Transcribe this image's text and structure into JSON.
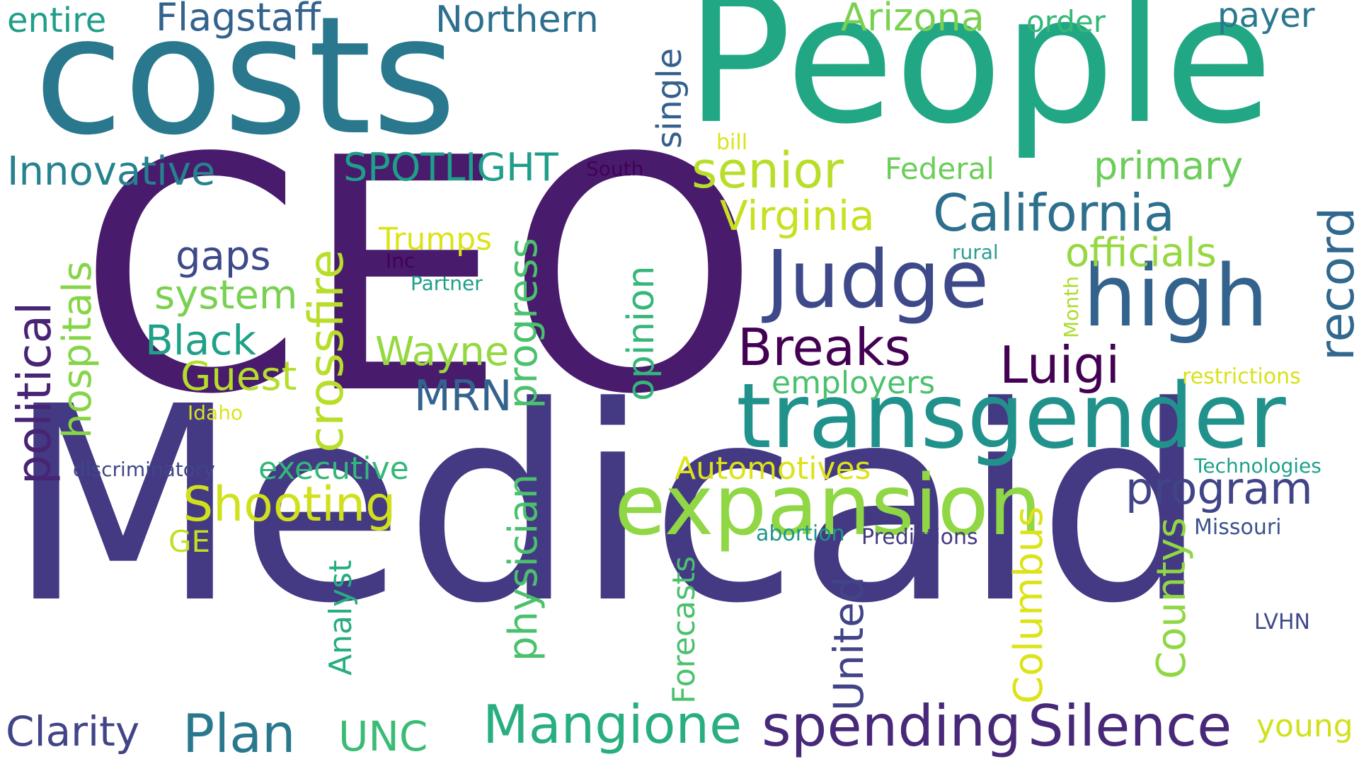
{
  "words": [
    {
      "id": "Medicaid",
      "text": "Medicaid",
      "color": "#443983"
    },
    {
      "id": "CEO",
      "text": "CEO",
      "color": "#481B6D"
    },
    {
      "id": "People",
      "text": "People",
      "color": "#22A785"
    },
    {
      "id": "costs",
      "text": "costs",
      "color": "#2A788E"
    },
    {
      "id": "transgender",
      "text": "transgender",
      "color": "#21918C"
    },
    {
      "id": "expansion",
      "text": "expansion",
      "color": "#8FD744"
    },
    {
      "id": "Judge",
      "text": "Judge",
      "color": "#3E4989"
    },
    {
      "id": "high",
      "text": "high",
      "color": "#33638D"
    },
    {
      "id": "Silence",
      "text": "Silence",
      "color": "#482878"
    },
    {
      "id": "spending",
      "text": "spending",
      "color": "#482878"
    },
    {
      "id": "Mangione",
      "text": "Mangione",
      "color": "#29AF7F"
    },
    {
      "id": "California",
      "text": "California",
      "color": "#2D708E"
    },
    {
      "id": "Breaks",
      "text": "Breaks",
      "color": "#440154"
    },
    {
      "id": "Luigi",
      "text": "Luigi",
      "color": "#440154"
    },
    {
      "id": "Shooting",
      "text": "Shooting",
      "color": "#D0E11C"
    },
    {
      "id": "Plan",
      "text": "Plan",
      "color": "#2A788E"
    },
    {
      "id": "senior",
      "text": "senior",
      "color": "#B8DE29"
    },
    {
      "id": "record",
      "text": "record",
      "color": "#31688E"
    },
    {
      "id": "crossfire",
      "text": "crossfire",
      "color": "#B8DE29"
    },
    {
      "id": "political",
      "text": "political",
      "color": "#482475"
    },
    {
      "id": "physician",
      "text": "physician",
      "color": "#4AC16D"
    },
    {
      "id": "progress",
      "text": "progress",
      "color": "#4AC16D"
    },
    {
      "id": "Northern",
      "text": "Northern",
      "color": "#2D708E"
    },
    {
      "id": "Flagstaff",
      "text": "Flagstaff",
      "color": "#33638D"
    },
    {
      "id": "entire",
      "text": "entire",
      "color": "#1F9E89"
    },
    {
      "id": "Arizona",
      "text": "Arizona",
      "color": "#7AD151"
    },
    {
      "id": "order",
      "text": "order",
      "color": "#35B779"
    },
    {
      "id": "payer",
      "text": "payer",
      "color": "#2A788E"
    },
    {
      "id": "single",
      "text": "single",
      "color": "#355F8D"
    },
    {
      "id": "Innovative",
      "text": "Innovative",
      "color": "#26828E"
    },
    {
      "id": "SPOTLIGHT",
      "text": "SPOTLIGHT",
      "color": "#1F9E89"
    },
    {
      "id": "South",
      "text": "South",
      "color": "#440154"
    },
    {
      "id": "bill",
      "text": "bill",
      "color": "#DCE319"
    },
    {
      "id": "Federal",
      "text": "Federal",
      "color": "#6CCD5A"
    },
    {
      "id": "primary",
      "text": "primary",
      "color": "#6CCD5A"
    },
    {
      "id": "Virginia",
      "text": "Virginia",
      "color": "#C8E020"
    },
    {
      "id": "officials",
      "text": "officials",
      "color": "#95D840"
    },
    {
      "id": "rural",
      "text": "rural",
      "color": "#2A9D8F"
    },
    {
      "id": "Month",
      "text": "Month",
      "color": "#ADDC30"
    },
    {
      "id": "Trumps",
      "text": "Trumps",
      "color": "#DCE319"
    },
    {
      "id": "Inc",
      "text": "Inc",
      "color": "#440154"
    },
    {
      "id": "Partner",
      "text": "Partner",
      "color": "#1F9E89"
    },
    {
      "id": "gaps",
      "text": "gaps",
      "color": "#3E4989"
    },
    {
      "id": "system",
      "text": "system",
      "color": "#7AD151"
    },
    {
      "id": "Black",
      "text": "Black",
      "color": "#1FA188"
    },
    {
      "id": "Guest",
      "text": "Guest",
      "color": "#B5DE2B"
    },
    {
      "id": "hospitals",
      "text": "hospitals",
      "color": "#86D549"
    },
    {
      "id": "Wayne",
      "text": "Wayne",
      "color": "#95D840"
    },
    {
      "id": "MRN",
      "text": "MRN",
      "color": "#33638D"
    },
    {
      "id": "opinion",
      "text": "opinion",
      "color": "#35B779"
    },
    {
      "id": "employers",
      "text": "employers",
      "color": "#4AC16D"
    },
    {
      "id": "restrictions",
      "text": "restrictions",
      "color": "#D8E219"
    },
    {
      "id": "Idaho",
      "text": "Idaho",
      "color": "#DCE319"
    },
    {
      "id": "discriminatory",
      "text": "discriminatory",
      "color": "#404688"
    },
    {
      "id": "executive",
      "text": "executive",
      "color": "#35B779"
    },
    {
      "id": "Automotives",
      "text": "Automotives",
      "color": "#DCE319"
    },
    {
      "id": "program",
      "text": "program",
      "color": "#414487"
    },
    {
      "id": "Technologies",
      "text": "Technologies",
      "color": "#1FA188"
    },
    {
      "id": "GE",
      "text": "GE",
      "color": "#C2DF23"
    },
    {
      "id": "abortion",
      "text": "abortion",
      "color": "#1F968B"
    },
    {
      "id": "Predictions",
      "text": "Predictions",
      "color": "#443983"
    },
    {
      "id": "Missouri",
      "text": "Missouri",
      "color": "#3B528B"
    },
    {
      "id": "Analyst",
      "text": "Analyst",
      "color": "#26AD81"
    },
    {
      "id": "Forecasts",
      "text": "Forecasts",
      "color": "#4AC16D"
    },
    {
      "id": "United",
      "text": "United",
      "color": "#414487"
    },
    {
      "id": "Columbus",
      "text": "Columbus",
      "color": "#DCE319"
    },
    {
      "id": "Countys",
      "text": "Countys",
      "color": "#8FD744"
    },
    {
      "id": "LVHN",
      "text": "LVHN",
      "color": "#3E4989"
    },
    {
      "id": "Clarity",
      "text": "Clarity",
      "color": "#414487"
    },
    {
      "id": "UNC",
      "text": "UNC",
      "color": "#3BBB75"
    },
    {
      "id": "young",
      "text": "young",
      "color": "#D0E11C"
    }
  ]
}
